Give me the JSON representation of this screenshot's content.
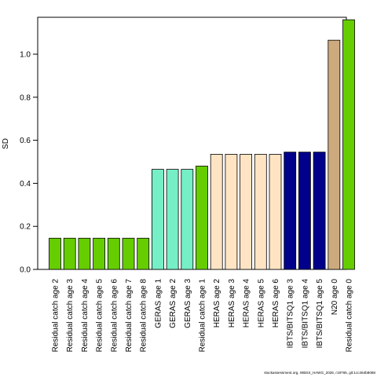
{
  "chart_data": {
    "type": "bar",
    "title": "",
    "xlabel": "",
    "ylabel": "SD",
    "ylim": [
      0,
      1.16
    ],
    "yticks": [
      0.0,
      0.2,
      0.4,
      0.6,
      0.8,
      1.0
    ],
    "ytick_labels": [
      "0.0",
      "0.2",
      "0.4",
      "0.6",
      "0.8",
      "1.0"
    ],
    "grid": false,
    "legend": "none",
    "categories": [
      "Residual catch age 2",
      "Residual catch age 3",
      "Residual catch age 4",
      "Residual catch age 5",
      "Residual catch age 6",
      "Residual catch age 7",
      "Residual catch age 8",
      "GERAS age 1",
      "GERAS age 2",
      "GERAS age 3",
      "Residual catch age 1",
      "HERAS age 2",
      "HERAS age 3",
      "HERAS age 4",
      "HERAS age 5",
      "HERAS age 6",
      "IBTS/BITSQ1 age 3",
      "IBTS/BITSQ1 age 4",
      "IBTS/BITSQ1 age 5",
      "N20 age 0",
      "Residual catch age 0"
    ],
    "values": [
      0.145,
      0.145,
      0.145,
      0.145,
      0.145,
      0.145,
      0.145,
      0.465,
      0.465,
      0.465,
      0.48,
      0.535,
      0.535,
      0.535,
      0.535,
      0.535,
      0.545,
      0.545,
      0.545,
      1.065,
      1.16
    ],
    "colors": [
      "#66cd00",
      "#66cd00",
      "#66cd00",
      "#66cd00",
      "#66cd00",
      "#66cd00",
      "#66cd00",
      "#76eec6",
      "#76eec6",
      "#76eec6",
      "#66cd00",
      "#ffe4c4",
      "#ffe4c4",
      "#ffe4c4",
      "#ffe4c4",
      "#ffe4c4",
      "#00008b",
      "#00008b",
      "#00008b",
      "#cdaa7d",
      "#66cd00"
    ]
  },
  "footnote": "stockassessment.org, WBSS_HAWG_2026, r19765, git:1cc464b8068"
}
